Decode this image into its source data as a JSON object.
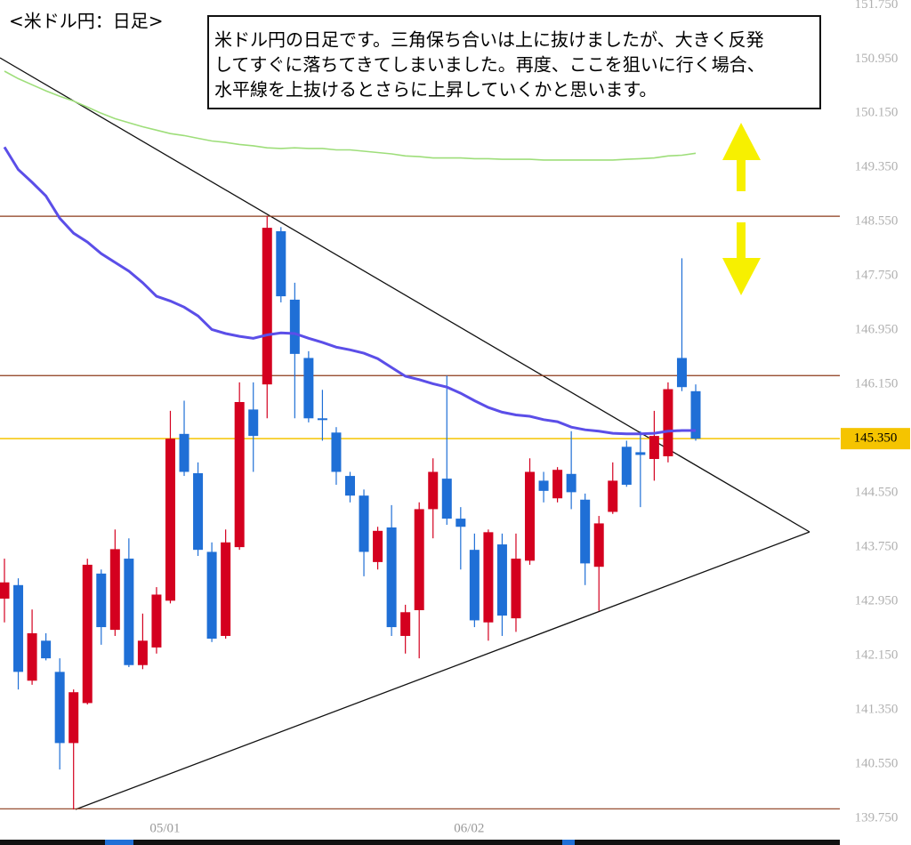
{
  "chart_data": {
    "type": "candlestick",
    "title": "<米ドル円：日足>",
    "annotation": [
      "米ドル円の日足です。三角保ち合いは上に抜けましたが、大きく反発",
      "してすぐに落ちてきてしまいました。再度、ここを狙いに行く場合、",
      "水平線を上抜けるとさらに上昇していくかと思います。"
    ],
    "categories": [
      null,
      null,
      null,
      null,
      null,
      null,
      null,
      null,
      null,
      null,
      null,
      null,
      "05/01",
      null,
      null,
      null,
      null,
      null,
      null,
      null,
      null,
      null,
      null,
      null,
      null,
      null,
      null,
      null,
      null,
      null,
      null,
      null,
      null,
      null,
      "06/02",
      null,
      null,
      null,
      null,
      null,
      null,
      null,
      null,
      null,
      null,
      null,
      null,
      null,
      null,
      null,
      null
    ],
    "open": [
      142.99,
      143.19,
      141.78,
      142.37,
      141.91,
      140.86,
      141.45,
      143.36,
      142.53,
      143.58,
      142.01,
      142.27,
      142.96,
      145.42,
      144.84,
      143.68,
      142.44,
      143.75,
      145.78,
      146.15,
      148.41,
      147.4,
      146.54,
      145.65,
      145.44,
      144.8,
      144.51,
      143.53,
      144.04,
      142.44,
      142.82,
      144.31,
      144.76,
      144.17,
      143.71,
      142.64,
      143.79,
      142.7,
      143.55,
      144.73,
      144.47,
      144.83,
      144.45,
      143.46,
      144.27,
      145.23,
      145.15,
      145.05,
      145.09,
      146.54,
      146.05
    ],
    "high": [
      143.58,
      143.29,
      142.83,
      142.48,
      142.11,
      141.65,
      143.58,
      143.42,
      144.01,
      143.88,
      142.77,
      143.16,
      145.76,
      145.91,
      145.0,
      143.82,
      144.01,
      146.18,
      146.18,
      148.63,
      148.47,
      147.65,
      146.64,
      146.07,
      145.52,
      144.86,
      144.6,
      144.05,
      144.37,
      142.9,
      144.41,
      145.06,
      146.28,
      144.34,
      143.95,
      144.01,
      143.95,
      143.95,
      145.06,
      144.86,
      144.93,
      145.46,
      144.54,
      144.21,
      145.0,
      145.32,
      145.46,
      145.76,
      146.18,
      148.01,
      146.15
    ],
    "low": [
      142.64,
      141.65,
      141.72,
      142.08,
      140.47,
      139.88,
      141.43,
      142.31,
      142.44,
      141.98,
      141.95,
      142.18,
      142.92,
      144.8,
      143.62,
      142.35,
      142.4,
      143.71,
      144.86,
      145.65,
      147.36,
      145.65,
      145.59,
      145.32,
      144.67,
      144.41,
      143.32,
      143.42,
      142.44,
      142.18,
      142.11,
      143.88,
      144.08,
      143.42,
      142.57,
      142.37,
      142.44,
      142.5,
      143.49,
      144.41,
      144.41,
      144.31,
      143.19,
      142.81,
      144.24,
      144.64,
      144.34,
      144.73,
      145.0,
      146.05,
      145.32
    ],
    "close": [
      143.23,
      141.91,
      142.48,
      142.11,
      140.86,
      141.61,
      143.49,
      142.57,
      143.72,
      142.01,
      142.37,
      143.05,
      145.35,
      144.86,
      143.71,
      142.4,
      143.82,
      145.89,
      145.39,
      148.46,
      147.45,
      146.6,
      145.65,
      145.63,
      144.86,
      144.51,
      143.68,
      143.99,
      142.57,
      142.79,
      144.31,
      144.86,
      144.17,
      144.05,
      142.67,
      143.97,
      142.74,
      143.58,
      144.86,
      144.58,
      144.89,
      144.56,
      143.51,
      144.1,
      144.73,
      144.67,
      145.11,
      145.39,
      146.08,
      146.11,
      145.35
    ],
    "up_color": "#d4001f",
    "down_color": "#1f6fd6",
    "moving_averages": [
      {
        "color": "#5b4ee8",
        "values": [
          149.65,
          149.32,
          149.13,
          148.93,
          148.6,
          148.38,
          148.25,
          148.08,
          147.95,
          147.82,
          147.65,
          147.45,
          147.38,
          147.29,
          147.16,
          146.96,
          146.9,
          146.86,
          146.83,
          146.88,
          146.91,
          146.9,
          146.83,
          146.77,
          146.7,
          146.66,
          146.61,
          146.53,
          146.4,
          146.27,
          146.22,
          146.16,
          146.11,
          146.02,
          145.91,
          145.81,
          145.74,
          145.7,
          145.68,
          145.63,
          145.6,
          145.52,
          145.48,
          145.46,
          145.43,
          145.42,
          145.42,
          145.43,
          145.46,
          145.47,
          145.47
        ]
      },
      {
        "color": "#9ede7a",
        "values": [
          150.77,
          150.66,
          150.57,
          150.48,
          150.4,
          150.33,
          150.24,
          150.15,
          150.07,
          150.01,
          149.95,
          149.9,
          149.85,
          149.82,
          149.78,
          149.74,
          149.72,
          149.69,
          149.67,
          149.64,
          149.63,
          149.64,
          149.63,
          149.63,
          149.61,
          149.61,
          149.59,
          149.57,
          149.55,
          149.52,
          149.51,
          149.49,
          149.49,
          149.49,
          149.48,
          149.48,
          149.47,
          149.47,
          149.47,
          149.46,
          149.46,
          149.46,
          149.46,
          149.46,
          149.46,
          149.47,
          149.48,
          149.49,
          149.52,
          149.53,
          149.56
        ]
      }
    ],
    "levels": [
      {
        "value": 148.63,
        "color": "#8b3a1a"
      },
      {
        "value": 146.28,
        "color": "#8b3a1a"
      },
      {
        "value": 139.89,
        "color": "#8b3a1a"
      }
    ],
    "current_price": {
      "value": 145.35,
      "label": "145.350",
      "color": "#f5c400"
    },
    "ylim": [
      139.75,
      151.82
    ],
    "yticks": [
      {
        "value": 151.75,
        "label": "151.750"
      },
      {
        "value": 150.95,
        "label": "150.950"
      },
      {
        "value": 150.15,
        "label": "150.150"
      },
      {
        "value": 149.35,
        "label": "149.350"
      },
      {
        "value": 148.55,
        "label": "148.550"
      },
      {
        "value": 147.75,
        "label": "147.750"
      },
      {
        "value": 146.95,
        "label": "146.950"
      },
      {
        "value": 146.15,
        "label": "146.150"
      },
      {
        "value": 144.55,
        "label": "144.550"
      },
      {
        "value": 143.75,
        "label": "143.750"
      },
      {
        "value": 142.95,
        "label": "142.950"
      },
      {
        "value": 142.15,
        "label": "142.150"
      },
      {
        "value": 141.35,
        "label": "141.350"
      },
      {
        "value": 140.55,
        "label": "140.550"
      },
      {
        "value": 139.75,
        "label": "139.750"
      }
    ]
  }
}
